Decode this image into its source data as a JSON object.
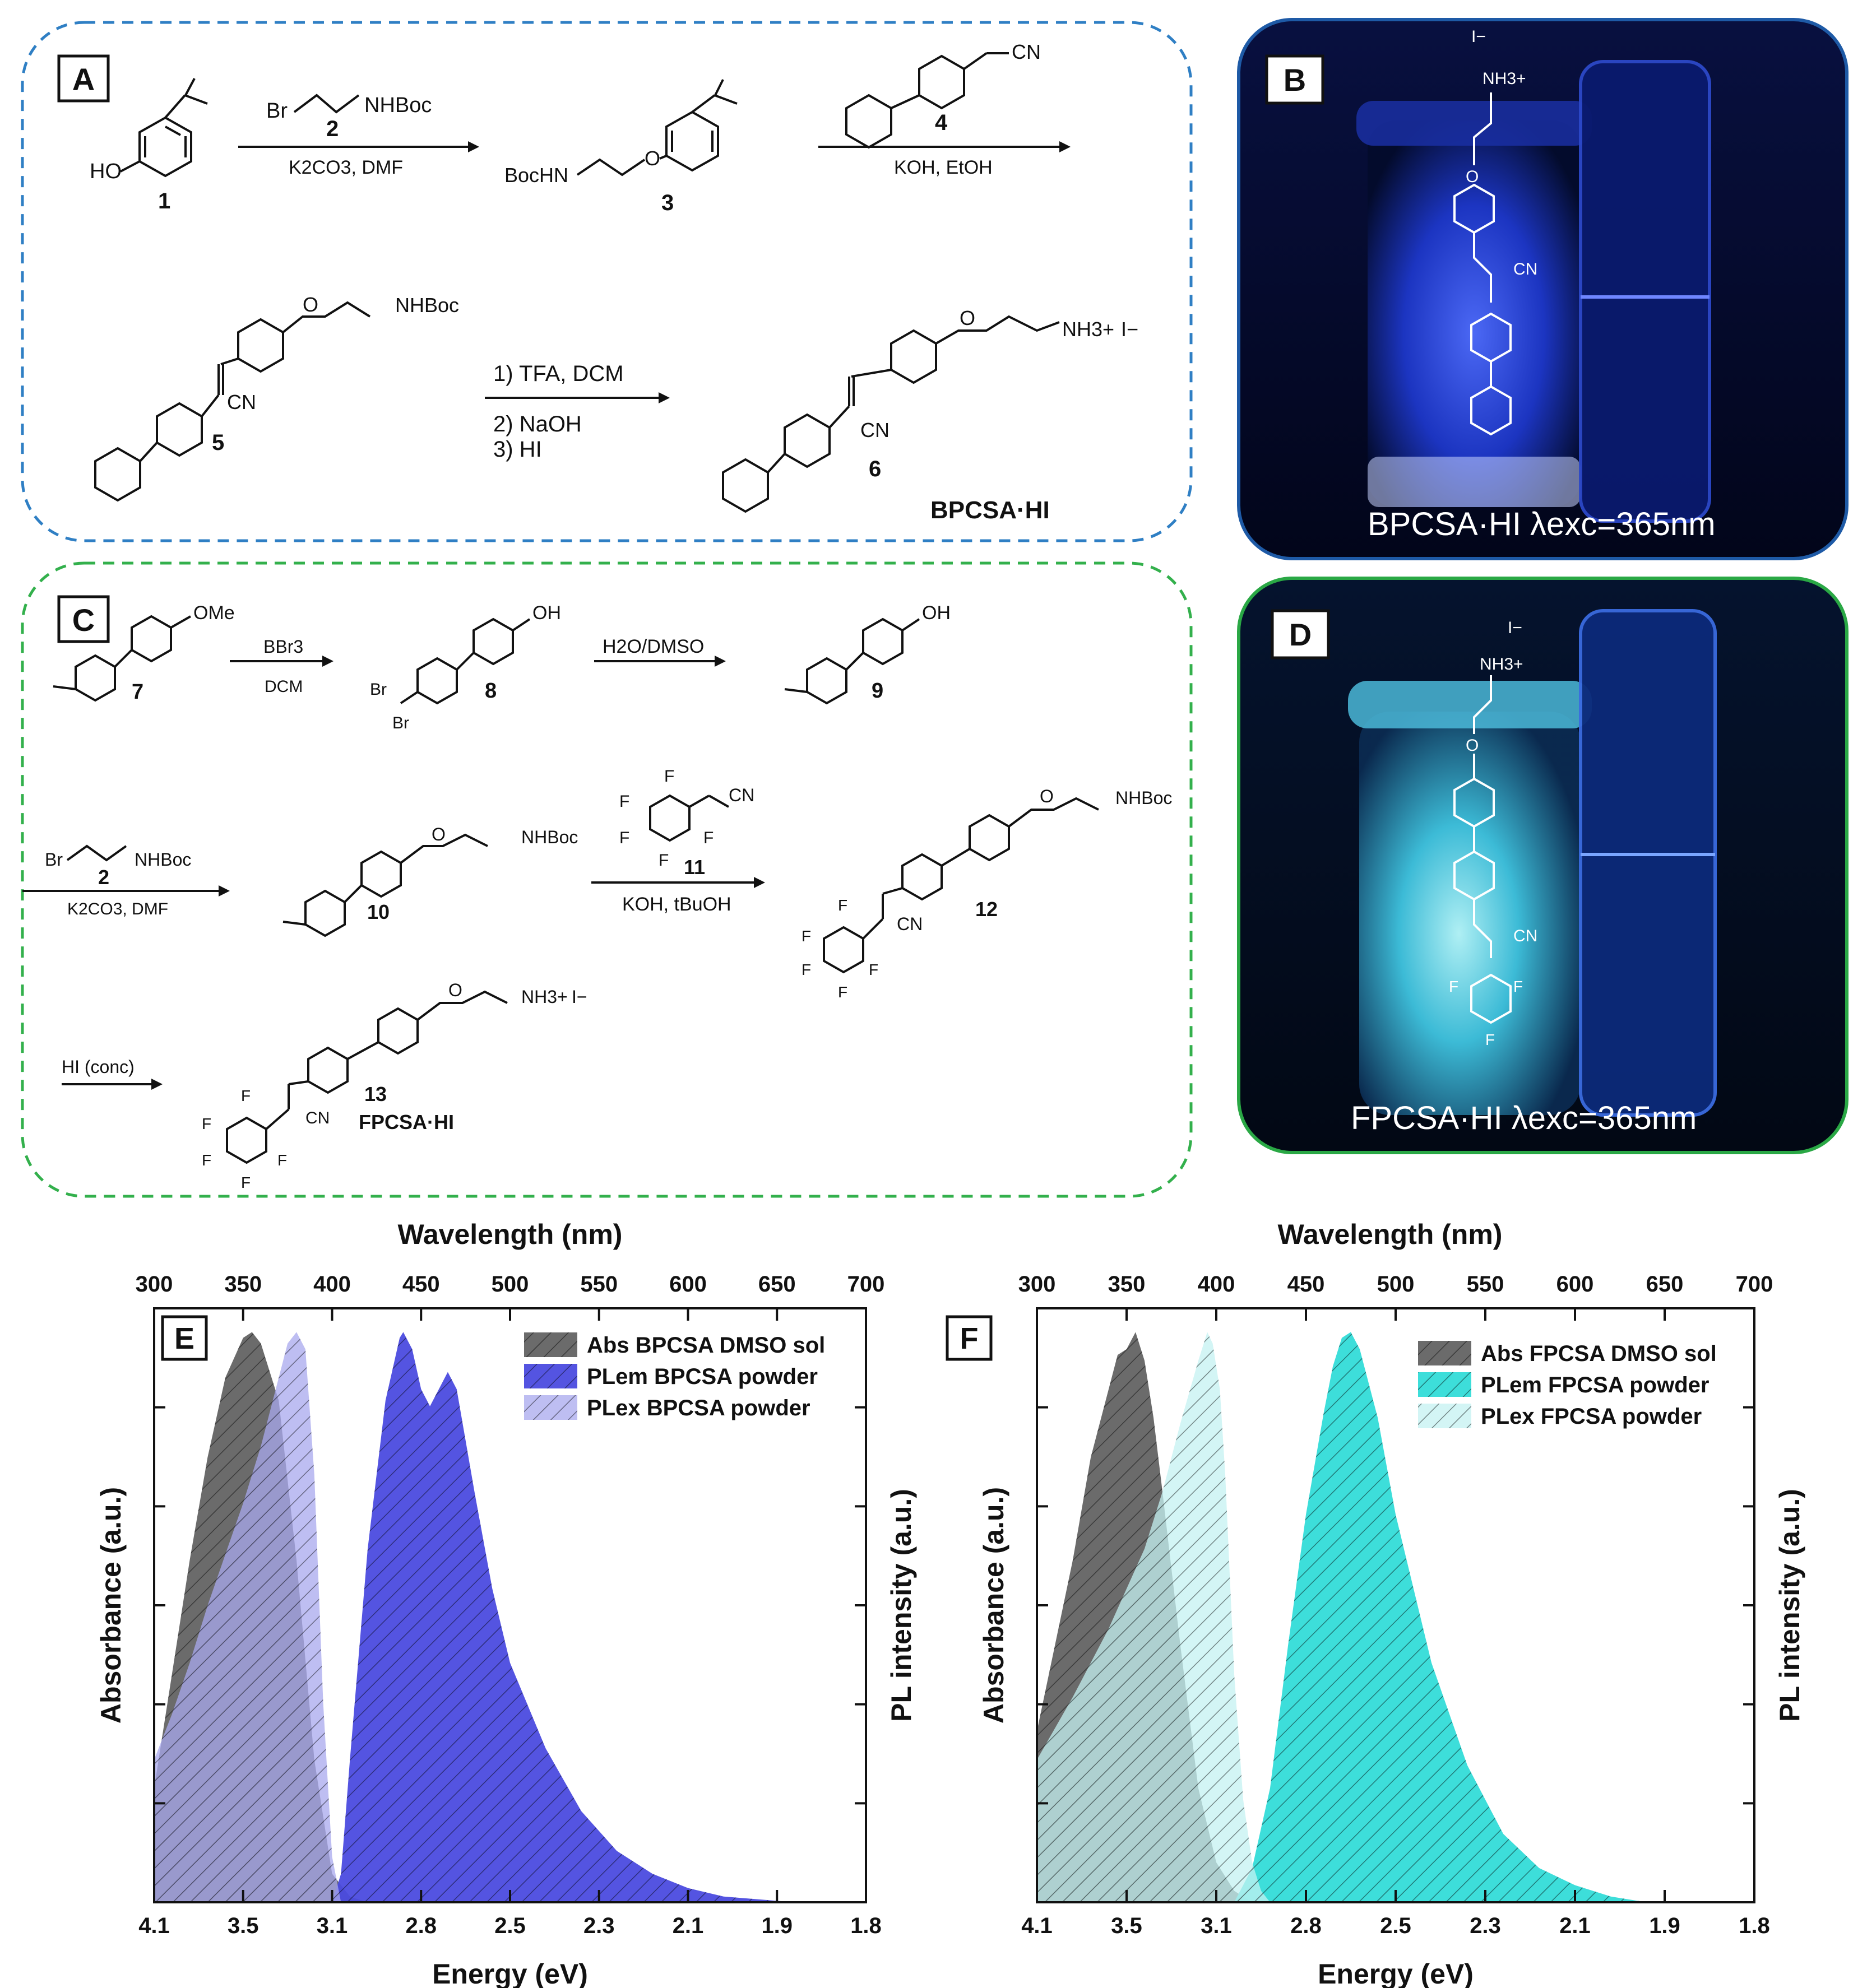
{
  "panels": {
    "A": "A",
    "B": "B",
    "C": "C",
    "D": "D",
    "E": "E",
    "F": "F"
  },
  "scheme_a": {
    "cpd1": "1",
    "cpd2": "2",
    "cpd3": "3",
    "cpd4": "4",
    "cpd5": "5",
    "cpd6": "6",
    "ho": "HO",
    "br": "Br",
    "nhboc": "NHBoc",
    "bochn": "BocHN",
    "cn": "CN",
    "nh3": "NH3+",
    "iodide": "I−",
    "o": "O",
    "step1_reagent": "K2CO3, DMF",
    "step2_reagent": "KOH, EtOH",
    "step3_line1": "1) TFA, DCM",
    "step3_line2": "2) NaOH",
    "step3_line3": "3) HI",
    "product_name": "BPCSA·HI"
  },
  "scheme_c": {
    "cpd7": "7",
    "cpd8": "8",
    "cpd9": "9",
    "cpd2": "2",
    "cpd10": "10",
    "cpd11": "11",
    "cpd12": "12",
    "cpd13": "13",
    "ome": "OMe",
    "oh": "OH",
    "br": "Br",
    "nhboc": "NHBoc",
    "cn": "CN",
    "f": "F",
    "nh3": "NH3+",
    "iodide": "I−",
    "o": "O",
    "step_bbr3": "BBr3",
    "step_dcm": "DCM",
    "step_h2o": "H2O/DMSO",
    "step_k2co3": "K2CO3, DMF",
    "step_koh": "KOH, tBuOH",
    "step_hi": "HI (conc)",
    "product_name": "FPCSA·HI"
  },
  "photo_b": {
    "caption": "BPCSA·HI λexc=365nm",
    "ion": "I−",
    "nh3": "NH3+",
    "cn": "CN",
    "o": "O"
  },
  "photo_d": {
    "caption": "FPCSA·HI λexc=365nm",
    "ion": "I−",
    "nh3": "NH3+",
    "cn": "CN",
    "o": "O",
    "f": "F"
  },
  "colors": {
    "panel_a_border": "#2f7fc4",
    "panel_c_border": "#33b04c",
    "abs": "#4a4a4a",
    "plem_bpcsa": "#4b4bdf",
    "plex_bpcsa": "#a8a8ee",
    "plem_fpcsa": "#33dcd8",
    "plex_fpcsa": "#c4f2f1"
  },
  "chart_data": [
    {
      "type": "area",
      "panel": "E",
      "xlabel": "Energy (eV)",
      "x2label": "Wavelength (nm)",
      "ylabel": "Absorbance (a.u.)",
      "y2label": "PL intensity (a.u.)",
      "x_ticks": [
        "4.1",
        "3.5",
        "3.1",
        "2.8",
        "2.5",
        "2.3",
        "2.1",
        "1.9",
        "1.8"
      ],
      "x2_ticks": [
        "300",
        "350",
        "400",
        "450",
        "500",
        "550",
        "600",
        "650",
        "700"
      ],
      "xlim_nm": [
        300,
        700
      ],
      "legend_position": "top-right",
      "series": [
        {
          "name": "Abs BPCSA DMSO sol",
          "x": [
            300,
            310,
            320,
            330,
            340,
            350,
            355,
            360,
            370,
            380,
            390,
            400,
            410,
            420
          ],
          "y": [
            0.2,
            0.4,
            0.6,
            0.78,
            0.92,
            0.99,
            1.0,
            0.98,
            0.88,
            0.6,
            0.25,
            0.05,
            0.01,
            0.0
          ]
        },
        {
          "name": "PLem BPCSA powder",
          "x": [
            400,
            405,
            410,
            420,
            430,
            438,
            440,
            445,
            450,
            455,
            460,
            465,
            470,
            480,
            490,
            500,
            520,
            540,
            560,
            580,
            600,
            620,
            640,
            660,
            700
          ],
          "y": [
            0.0,
            0.05,
            0.25,
            0.62,
            0.88,
            0.99,
            1.0,
            0.97,
            0.9,
            0.87,
            0.9,
            0.93,
            0.9,
            0.72,
            0.55,
            0.42,
            0.27,
            0.16,
            0.09,
            0.05,
            0.025,
            0.01,
            0.005,
            0.0,
            0.0
          ]
        },
        {
          "name": "PLex BPCSA powder",
          "x": [
            300,
            310,
            320,
            330,
            340,
            350,
            360,
            370,
            375,
            380,
            385,
            390,
            395,
            400,
            405
          ],
          "y": [
            0.25,
            0.33,
            0.42,
            0.52,
            0.61,
            0.7,
            0.8,
            0.92,
            0.98,
            1.0,
            0.97,
            0.75,
            0.35,
            0.08,
            0.0
          ]
        }
      ]
    },
    {
      "type": "area",
      "panel": "F",
      "xlabel": "Energy (eV)",
      "x2label": "Wavelength (nm)",
      "ylabel": "Absorbance (a.u.)",
      "y2label": "PL intensity (a.u.)",
      "x_ticks": [
        "4.1",
        "3.5",
        "3.1",
        "2.8",
        "2.5",
        "2.3",
        "2.1",
        "1.9",
        "1.8"
      ],
      "x2_ticks": [
        "300",
        "350",
        "400",
        "450",
        "500",
        "550",
        "600",
        "650",
        "700"
      ],
      "xlim_nm": [
        300,
        700
      ],
      "legend_position": "top-right",
      "series": [
        {
          "name": "Abs FPCSA DMSO sol",
          "x": [
            300,
            310,
            320,
            330,
            340,
            345,
            350,
            355,
            360,
            365,
            370,
            380,
            390,
            400,
            410,
            420
          ],
          "y": [
            0.3,
            0.45,
            0.6,
            0.78,
            0.9,
            0.96,
            0.97,
            1.0,
            0.95,
            0.85,
            0.72,
            0.45,
            0.2,
            0.07,
            0.02,
            0.0
          ]
        },
        {
          "name": "PLem FPCSA powder",
          "x": [
            410,
            420,
            430,
            440,
            450,
            460,
            465,
            470,
            475,
            480,
            490,
            500,
            520,
            540,
            560,
            580,
            600,
            620,
            640,
            660
          ],
          "y": [
            0.0,
            0.06,
            0.2,
            0.45,
            0.68,
            0.86,
            0.94,
            0.99,
            1.0,
            0.97,
            0.85,
            0.68,
            0.42,
            0.24,
            0.12,
            0.06,
            0.03,
            0.01,
            0.0,
            0.0
          ]
        },
        {
          "name": "PLex FPCSA powder",
          "x": [
            300,
            320,
            340,
            360,
            370,
            380,
            390,
            395,
            398,
            402,
            405,
            410,
            415,
            420,
            425,
            430
          ],
          "y": [
            0.25,
            0.36,
            0.48,
            0.62,
            0.72,
            0.84,
            0.95,
            1.0,
            0.98,
            0.9,
            0.75,
            0.4,
            0.18,
            0.07,
            0.02,
            0.0
          ]
        }
      ]
    }
  ]
}
